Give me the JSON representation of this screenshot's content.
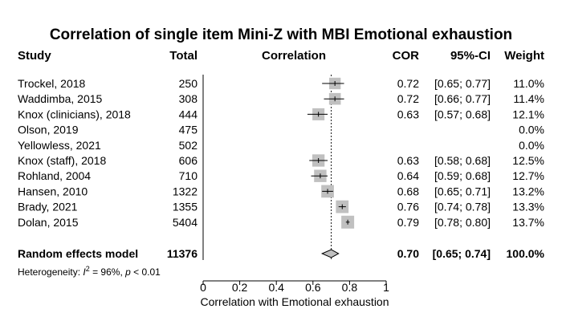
{
  "chart_data": {
    "type": "forest",
    "title": "Correlation of single item Mini-Z with MBI Emotional exhaustion",
    "headers": {
      "study": "Study",
      "total": "Total",
      "correlation": "Correlation",
      "cor": "COR",
      "ci": "95%-CI",
      "weight": "Weight"
    },
    "studies": [
      {
        "study": "Trockel, 2018",
        "total": "250",
        "cor": 0.72,
        "lower": 0.65,
        "upper": 0.77,
        "cor_text": "0.72",
        "ci_text": "[0.65; 0.77]",
        "weight_text": "11.0%",
        "weight": 11.0
      },
      {
        "study": "Waddimba, 2015",
        "total": "308",
        "cor": 0.72,
        "lower": 0.66,
        "upper": 0.77,
        "cor_text": "0.72",
        "ci_text": "[0.66; 0.77]",
        "weight_text": "11.4%",
        "weight": 11.4
      },
      {
        "study": "Knox (clinicians), 2018",
        "total": "444",
        "cor": 0.63,
        "lower": 0.57,
        "upper": 0.68,
        "cor_text": "0.63",
        "ci_text": "[0.57; 0.68]",
        "weight_text": "12.1%",
        "weight": 12.1
      },
      {
        "study": "Olson, 2019",
        "total": "475",
        "cor": null,
        "lower": null,
        "upper": null,
        "cor_text": "",
        "ci_text": "",
        "weight_text": "0.0%",
        "weight": 0.0
      },
      {
        "study": "Yellowless, 2021",
        "total": "502",
        "cor": null,
        "lower": null,
        "upper": null,
        "cor_text": "",
        "ci_text": "",
        "weight_text": "0.0%",
        "weight": 0.0
      },
      {
        "study": "Knox (staff), 2018",
        "total": "606",
        "cor": 0.63,
        "lower": 0.58,
        "upper": 0.68,
        "cor_text": "0.63",
        "ci_text": "[0.58; 0.68]",
        "weight_text": "12.5%",
        "weight": 12.5
      },
      {
        "study": "Rohland, 2004",
        "total": "710",
        "cor": 0.64,
        "lower": 0.59,
        "upper": 0.68,
        "cor_text": "0.64",
        "ci_text": "[0.59; 0.68]",
        "weight_text": "12.7%",
        "weight": 12.7
      },
      {
        "study": "Hansen, 2010",
        "total": "1322",
        "cor": 0.68,
        "lower": 0.65,
        "upper": 0.71,
        "cor_text": "0.68",
        "ci_text": "[0.65; 0.71]",
        "weight_text": "13.2%",
        "weight": 13.2
      },
      {
        "study": "Brady, 2021",
        "total": "1355",
        "cor": 0.76,
        "lower": 0.74,
        "upper": 0.78,
        "cor_text": "0.76",
        "ci_text": "[0.74; 0.78]",
        "weight_text": "13.3%",
        "weight": 13.3
      },
      {
        "study": "Dolan, 2015",
        "total": "5404",
        "cor": 0.79,
        "lower": 0.78,
        "upper": 0.8,
        "cor_text": "0.79",
        "ci_text": "[0.78; 0.80]",
        "weight_text": "13.7%",
        "weight": 13.7
      }
    ],
    "summary": {
      "label": "Random effects model",
      "total": "11376",
      "cor": 0.7,
      "lower": 0.65,
      "upper": 0.74,
      "cor_text": "0.70",
      "ci_text": "[0.65; 0.74]",
      "weight_text": "100.0%"
    },
    "heterogeneity": {
      "prefix": "Heterogeneity: ",
      "i2_symbol": "I",
      "i2_exp": "2",
      "i2_value": " = 96%, ",
      "p_symbol": "p",
      "p_value": " < 0.01"
    },
    "xlim": [
      0,
      1
    ],
    "xticks": [
      0,
      0.2,
      0.4,
      0.6,
      0.8,
      1
    ],
    "xtick_labels": [
      "0",
      "0.2",
      "0.4",
      "0.6",
      "0.8",
      "1"
    ],
    "xlabel": "Correlation with Emotional exhaustion",
    "colors": {
      "square": "#c0c0c0",
      "ci_line": "#000000",
      "diamond_fill": "#c0c0c0",
      "diamond_stroke": "#000000",
      "text": "#000000"
    }
  }
}
